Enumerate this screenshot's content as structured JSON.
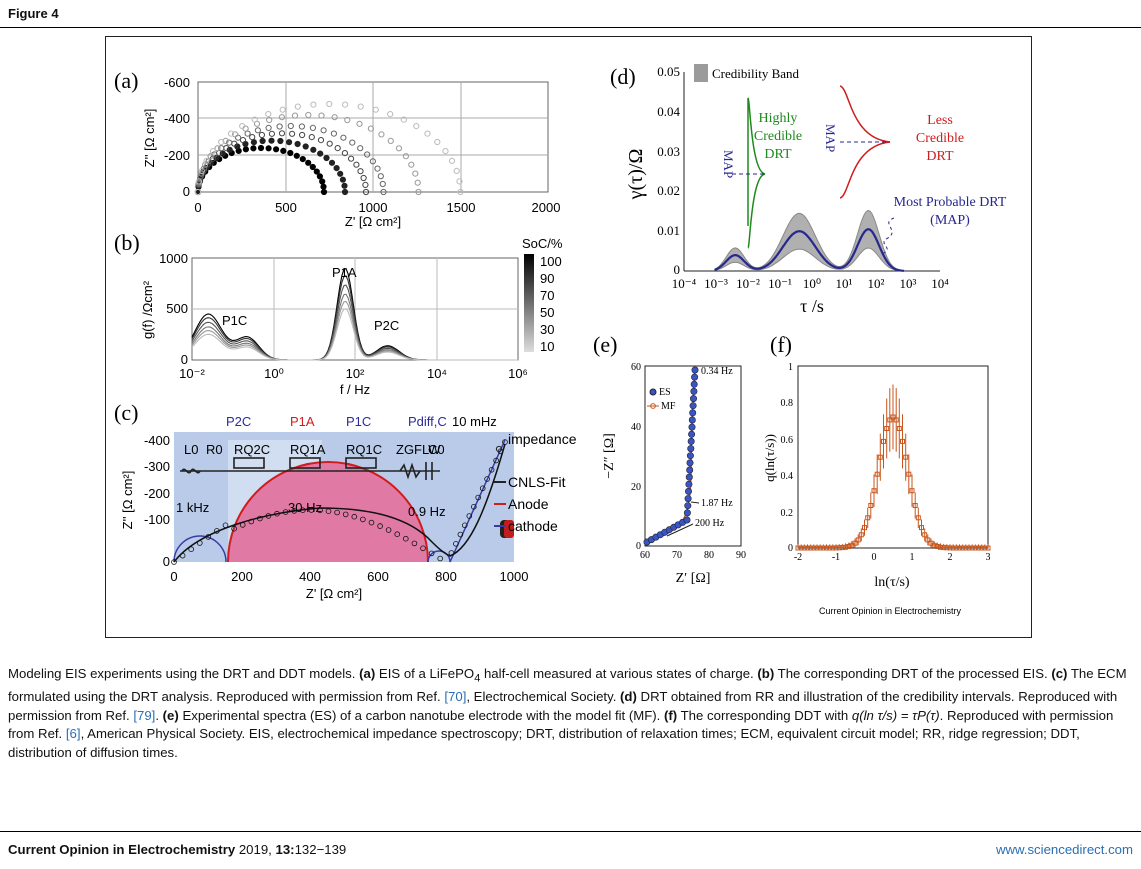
{
  "figure_label": "Figure 4",
  "panels": {
    "a": {
      "label": "(a)",
      "xlabel": "Z' [Ω cm²]",
      "ylabel": "Z'' [Ω cm²]",
      "xticks": [
        "0",
        "500",
        "1000",
        "1500",
        "2000"
      ],
      "yticks": [
        "-600",
        "-400",
        "-200",
        "0"
      ]
    },
    "b": {
      "label": "(b)",
      "xlabel": "f / Hz",
      "ylabel": "g(f) /Ωcm²",
      "yticks": [
        "1000",
        "500",
        "0"
      ],
      "xticks": [
        "10⁻²",
        "10⁰",
        "10²",
        "10⁴",
        "10⁶"
      ],
      "peaks": {
        "p1a": "P1A",
        "p1c": "P1C",
        "p2c": "P2C"
      },
      "legend_title": "SoC/%",
      "legend_values": [
        "100",
        "90",
        "70",
        "50",
        "30",
        "10"
      ]
    },
    "c": {
      "label": "(c)",
      "xlabel": "Z' [Ω cm²]",
      "ylabel": "Z'' [Ω cm²]",
      "xticks": [
        "0",
        "200",
        "400",
        "600",
        "800",
        "1000"
      ],
      "yticks": [
        "-400",
        "-300",
        "-200",
        "-100",
        "0"
      ],
      "top_labels": {
        "p2c": "P2C",
        "p1a": "P1A",
        "p1c": "P1C",
        "pdiff": "Pdiff,C",
        "freq": "10 mHz"
      },
      "circuit": {
        "l0": "L0",
        "r0": "R0",
        "rq2c": "RQ2C",
        "rq1a": "RQ1A",
        "rq1c": "RQ1C",
        "zgflw": "ZGFLW",
        "c0": "C0"
      },
      "freq_labels": {
        "f1": "1 kHz",
        "f2": "30 Hz",
        "f3": "0.9 Hz"
      },
      "legend": [
        "impedance spectrum",
        "CNLS-Fit",
        "Anode",
        "cathode"
      ]
    },
    "d": {
      "label": "(d)",
      "ylabel": "γ(τ)/Ω",
      "xlabel": "τ /s",
      "yticks": [
        "0.05",
        "0.04",
        "0.03",
        "0.02",
        "0.01",
        "0"
      ],
      "xticks": [
        "10⁻⁴",
        "10⁻³",
        "10⁻²",
        "10⁻¹",
        "10⁰",
        "10¹",
        "10²",
        "10³",
        "10⁴"
      ],
      "legend": "Credibility Band",
      "highly": [
        "Highly",
        "Credible",
        "DRT"
      ],
      "less": [
        "Less",
        "Credible",
        "DRT"
      ],
      "map_label": "MAP",
      "most_probable": [
        "Most Probable DRT",
        "(MAP)"
      ]
    },
    "e": {
      "label": "(e)",
      "ylabel": "−Z″ [Ω]",
      "xlabel": "Z′ [Ω]",
      "xticks": [
        "60",
        "70",
        "80",
        "90"
      ],
      "yticks": [
        "60",
        "40",
        "20",
        "0"
      ],
      "legend": [
        "ES",
        "MF"
      ],
      "annotations": [
        "0.34 Hz",
        "1.87 Hz",
        "200 Hz"
      ]
    },
    "f": {
      "label": "(f)",
      "ylabel": "q(ln(τ/s))",
      "xlabel": "ln(τ/s)",
      "xticks": [
        "-2",
        "-1",
        "0",
        "1",
        "2",
        "3"
      ],
      "yticks": [
        "1",
        "0.8",
        "0.6",
        "0.4",
        "0.2",
        "0"
      ],
      "watermark": "Current Opinion in Electrochemistry"
    }
  },
  "caption": {
    "intro": "Modeling EIS experiments using the DRT and DDT models. ",
    "a_label": "(a)",
    "a_text": " EIS of a LiFePO",
    "a_sub": "4",
    "a_text2": " half-cell measured at various states of charge. ",
    "b_label": "(b)",
    "b_text": " The corresponding DRT of the processed EIS. ",
    "c_label": "(c)",
    "c_text": " The ECM formulated using the DRT analysis. Reproduced with permission from Ref. ",
    "ref1": "[70]",
    "c_text2": ", Electrochemical Society. ",
    "d_label": "(d)",
    "d_text": " DRT obtained from RR and illustration of the credibility intervals. Reproduced with permission from Ref. ",
    "ref2": "[79]",
    "d_text2": ". ",
    "e_label": "(e)",
    "e_text": " Experimental spectra (ES) of a carbon nanotube electrode with the model fit (MF). ",
    "f_label": "(f)",
    "f_text": " The corresponding DDT with ",
    "f_formula": "q(ln τ/s) = τP(τ)",
    "f_text2": ". Reproduced with permission from Ref. ",
    "ref3": "[6]",
    "f_text3": ", American Physical Society. EIS, electrochemical impedance spectroscopy; DRT, distribution of relaxation times; ECM, equivalent circuit model; RR, ridge regression; DDT, distribution of diffusion times."
  },
  "footer": {
    "journal": "Current Opinion in Electrochemistry",
    "year": " 2019, ",
    "volume": "13:",
    "pages": "132−139",
    "url": "www.sciencedirect.com"
  },
  "chart_data": [
    {
      "type": "scatter",
      "panel": "a",
      "xlabel": "Z' [Ω cm²]",
      "ylabel": "Z'' [Ω cm²]",
      "xlim": [
        0,
        2000
      ],
      "ylim": [
        -600,
        0
      ],
      "series": [
        {
          "x_start": 0,
          "x_end": 720,
          "peak": -240
        },
        {
          "x_start": 0,
          "x_end": 840,
          "peak": -280
        },
        {
          "x_start": 0,
          "x_end": 960,
          "peak": -320
        },
        {
          "x_start": 0,
          "x_end": 1060,
          "peak": -360
        },
        {
          "x_start": 0,
          "x_end": 1260,
          "peak": -420
        },
        {
          "x_start": 0,
          "x_end": 1500,
          "peak": -480
        }
      ]
    },
    {
      "type": "line",
      "panel": "b",
      "xlabel": "f / Hz",
      "ylabel": "g(f) /Ωcm²",
      "ylim": [
        0,
        1000
      ],
      "xscale": "log",
      "xlim": [
        0.01,
        1000000
      ]
    },
    {
      "type": "line",
      "panel": "d",
      "xlabel": "τ /s",
      "ylabel": "γ(τ)/Ω",
      "ylim": [
        0,
        0.05
      ],
      "xscale": "log",
      "xlim": [
        0.0001,
        10000
      ]
    },
    {
      "type": "scatter",
      "panel": "e",
      "xlabel": "Z′ [Ω]",
      "ylabel": "−Z″ [Ω]",
      "xlim": [
        60,
        90
      ],
      "ylim": [
        0,
        60
      ]
    },
    {
      "type": "scatter",
      "panel": "f",
      "xlabel": "ln(τ/s)",
      "ylabel": "q(ln(τ/s))",
      "xlim": [
        -2,
        3
      ],
      "ylim": [
        0,
        1
      ]
    }
  ]
}
